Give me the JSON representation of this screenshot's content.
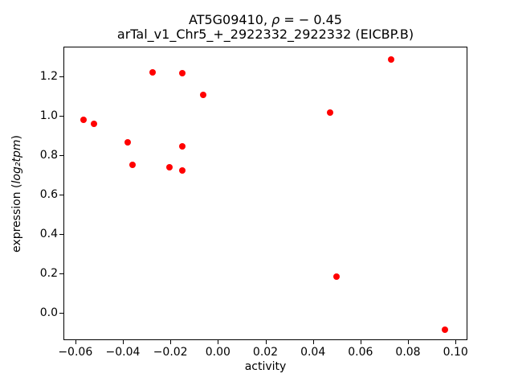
{
  "figure": {
    "title_prefix": "AT5G09410, ",
    "title_rho": "ρ",
    "title_suffix": " = − 0.45",
    "subtitle": "arTal_v1_Chr5_+_2922332_2922332 (EICBP.B)",
    "xlabel": "activity",
    "ylabel_prefix": "expression (",
    "ylabel_math": "log₂tpm",
    "ylabel_suffix": ")"
  },
  "chart_data": {
    "type": "scatter",
    "title": "AT5G09410, ρ = − 0.45",
    "subtitle": "arTal_v1_Chr5_+_2922332_2922332 (EICBP.B)",
    "xlabel": "activity",
    "ylabel": "expression (log₂tpm)",
    "marker_color": "#ff0000",
    "axis_color": "#000000",
    "background_color": "#ffffff",
    "grid": false,
    "legend": null,
    "xlim": [
      -0.065,
      0.105
    ],
    "ylim": [
      -0.14,
      1.35
    ],
    "xticks": {
      "values": [
        -0.06,
        -0.04,
        -0.02,
        0.0,
        0.02,
        0.04,
        0.06,
        0.08,
        0.1
      ],
      "labels": [
        "−0.06",
        "−0.04",
        "−0.02",
        "0.00",
        "0.02",
        "0.04",
        "0.06",
        "0.08",
        "0.10"
      ]
    },
    "yticks": {
      "values": [
        0.0,
        0.2,
        0.4,
        0.6,
        0.8,
        1.0,
        1.2
      ],
      "labels": [
        "0.0",
        "0.2",
        "0.4",
        "0.6",
        "0.8",
        "1.0",
        "1.2"
      ]
    },
    "points": [
      [
        -0.0566,
        0.979
      ],
      [
        -0.0523,
        0.957
      ],
      [
        -0.0378,
        0.865
      ],
      [
        -0.0361,
        0.749
      ],
      [
        -0.0275,
        1.221
      ],
      [
        -0.0149,
        1.215
      ],
      [
        -0.0061,
        1.104
      ],
      [
        -0.0205,
        0.737
      ],
      [
        -0.0149,
        0.843
      ],
      [
        -0.0149,
        0.721
      ],
      [
        0.0471,
        1.014
      ],
      [
        0.0498,
        0.183
      ],
      [
        0.0729,
        1.284
      ],
      [
        0.0955,
        -0.085
      ]
    ]
  }
}
